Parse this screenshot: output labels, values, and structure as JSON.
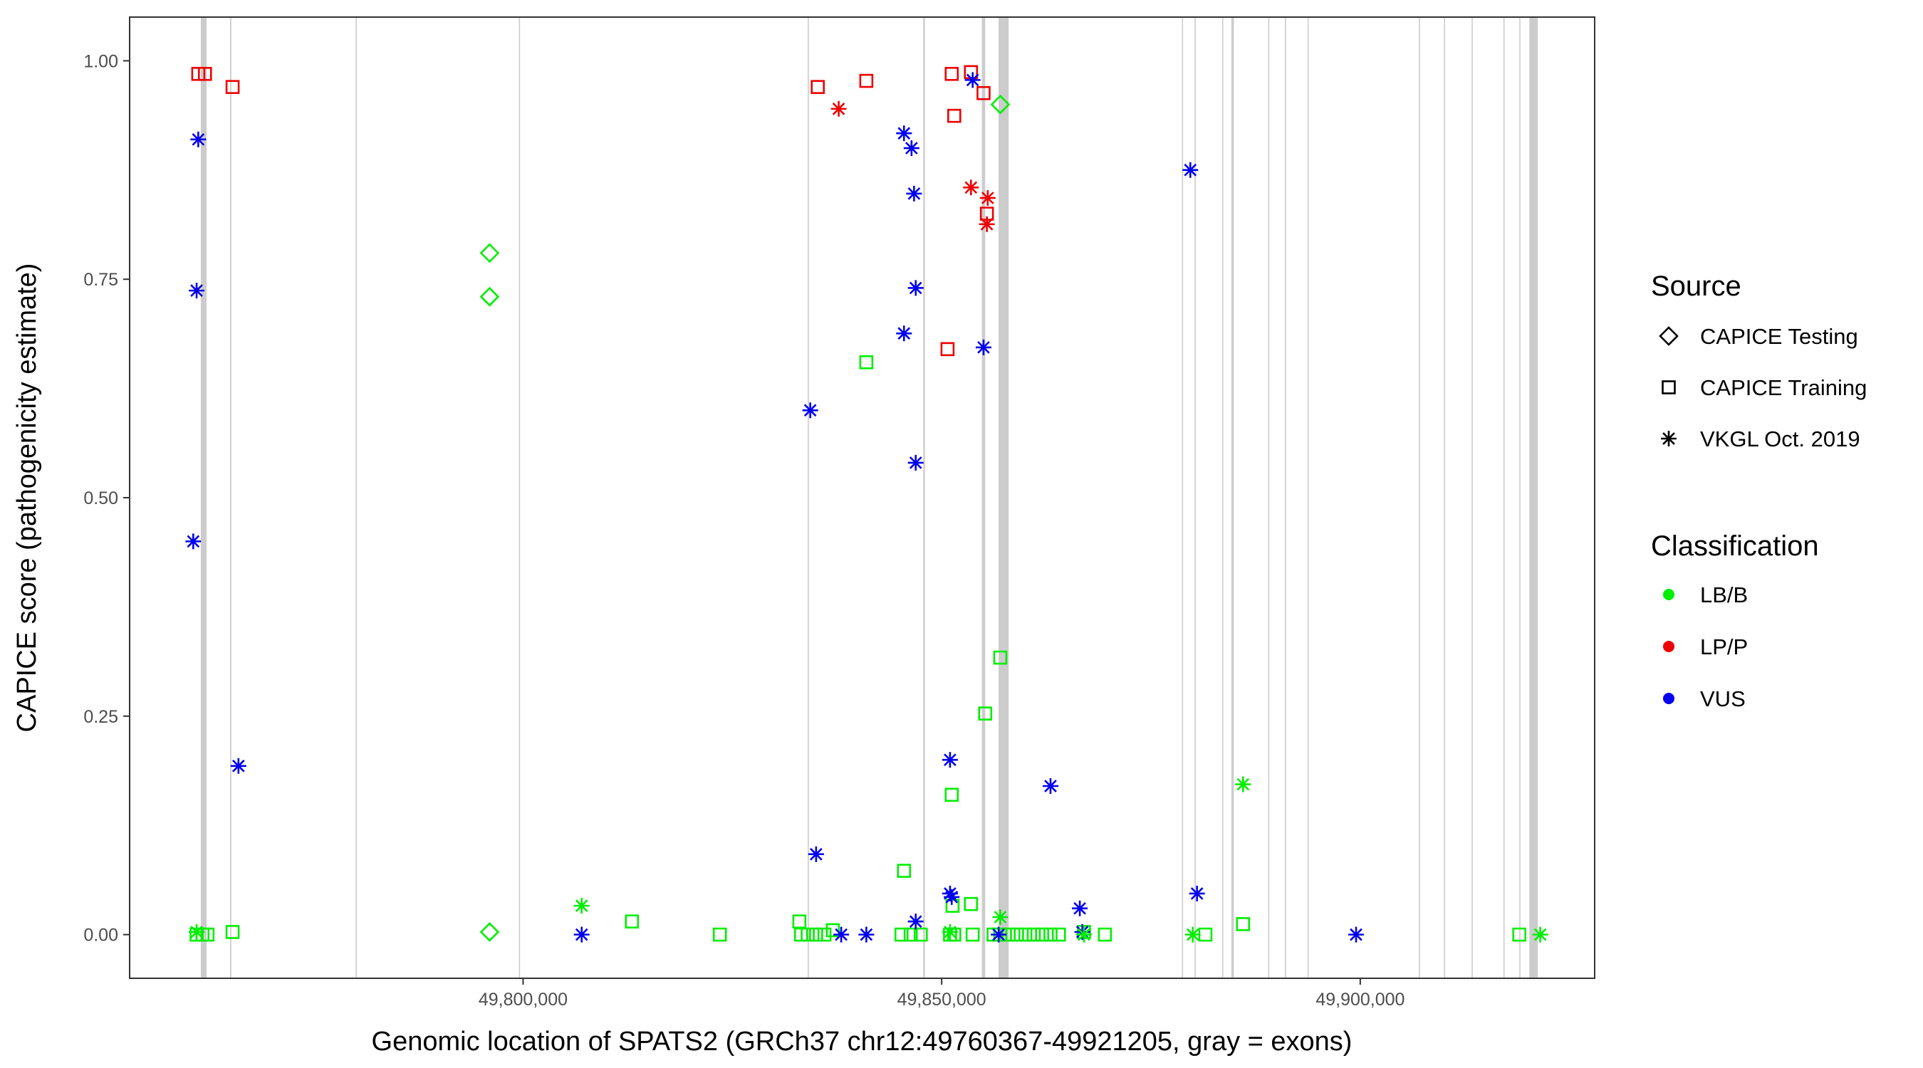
{
  "chart_data": {
    "type": "scatter",
    "title": "",
    "xlabel": "Genomic location of SPATS2 (GRCh37 chr12:49760367-49921205, gray = exons)",
    "ylabel": "CAPICE score (pathogenicity estimate)",
    "xlim": [
      49753000,
      49928000
    ],
    "ylim": [
      -0.05,
      1.05
    ],
    "x_ticks": [
      49800000,
      49850000,
      49900000
    ],
    "x_tick_labels": [
      "49,800,000",
      "49,850,000",
      "49,900,000"
    ],
    "y_ticks": [
      0,
      0.25,
      0.5,
      0.75,
      1
    ],
    "y_tick_labels": [
      "0.00",
      "0.25",
      "0.50",
      "0.75",
      "1.00"
    ],
    "grid": false,
    "legend_position": "right",
    "exon_lines": [
      {
        "start": 49761500,
        "end": 49762200
      },
      {
        "start": 49765000,
        "end": 49765150
      },
      {
        "start": 49780000,
        "end": 49780120
      },
      {
        "start": 49799500,
        "end": 49799620
      },
      {
        "start": 49834000,
        "end": 49834120
      },
      {
        "start": 49847800,
        "end": 49848000
      },
      {
        "start": 49854800,
        "end": 49855200
      },
      {
        "start": 49856800,
        "end": 49858000
      },
      {
        "start": 49878700,
        "end": 49878820
      },
      {
        "start": 49880200,
        "end": 49880320
      },
      {
        "start": 49883500,
        "end": 49883620
      },
      {
        "start": 49884600,
        "end": 49884900
      },
      {
        "start": 49889000,
        "end": 49889120
      },
      {
        "start": 49891000,
        "end": 49891120
      },
      {
        "start": 49893700,
        "end": 49893820
      },
      {
        "start": 49907000,
        "end": 49907120
      },
      {
        "start": 49910000,
        "end": 49910120
      },
      {
        "start": 49913300,
        "end": 49913420
      },
      {
        "start": 49917100,
        "end": 49917220
      },
      {
        "start": 49919000,
        "end": 49919120
      },
      {
        "start": 49920200,
        "end": 49921205
      }
    ],
    "legend": {
      "source_title": "Source",
      "source_items": [
        {
          "shape": "diamond",
          "label": "CAPICE Testing"
        },
        {
          "shape": "square",
          "label": "CAPICE Training"
        },
        {
          "shape": "asterisk",
          "label": "VKGL Oct. 2019"
        }
      ],
      "class_title": "Classification",
      "class_items": [
        {
          "key": "LB/B",
          "label": "LB/B",
          "color": "#00ee00"
        },
        {
          "key": "LP/P",
          "label": "LP/P",
          "color": "#ee0000"
        },
        {
          "key": "VUS",
          "label": "VUS",
          "color": "#0000ee"
        }
      ]
    },
    "colors": {
      "LB/B": "#00ee00",
      "LP/P": "#ee0000",
      "VUS": "#0000ee"
    },
    "series": [
      {
        "source": "CAPICE Testing",
        "class": "LB/B",
        "points": [
          [
            49796000,
            0.78
          ],
          [
            49796000,
            0.73
          ],
          [
            49796000,
            0.003
          ],
          [
            49857000,
            0.95
          ]
        ]
      },
      {
        "source": "CAPICE Training",
        "class": "LP/P",
        "points": [
          [
            49761200,
            0.985
          ],
          [
            49762000,
            0.985
          ],
          [
            49765300,
            0.97
          ],
          [
            49835200,
            0.97
          ],
          [
            49841000,
            0.977
          ],
          [
            49851200,
            0.985
          ],
          [
            49853500,
            0.987
          ],
          [
            49855000,
            0.963
          ],
          [
            49851500,
            0.937
          ],
          [
            49850700,
            0.67
          ],
          [
            49855400,
            0.825
          ]
        ]
      },
      {
        "source": "CAPICE Training",
        "class": "LB/B",
        "points": [
          [
            49761000,
            0.0
          ],
          [
            49761700,
            0.0
          ],
          [
            49762300,
            0.0
          ],
          [
            49765300,
            0.003
          ],
          [
            49813000,
            0.015
          ],
          [
            49823500,
            0.0
          ],
          [
            49833000,
            0.015
          ],
          [
            49833200,
            0.0
          ],
          [
            49834000,
            0.0
          ],
          [
            49835000,
            0.0
          ],
          [
            49836000,
            0.0
          ],
          [
            49837000,
            0.005
          ],
          [
            49841000,
            0.655
          ],
          [
            49845500,
            0.073
          ],
          [
            49845200,
            0.0
          ],
          [
            49846300,
            0.0
          ],
          [
            49847500,
            0.0
          ],
          [
            49851200,
            0.16
          ],
          [
            49851300,
            0.033
          ],
          [
            49851000,
            0.0
          ],
          [
            49851500,
            0.0
          ],
          [
            49853500,
            0.035
          ],
          [
            49853700,
            0.0
          ],
          [
            49855200,
            0.253
          ],
          [
            49857000,
            0.317
          ],
          [
            49856200,
            0.0
          ],
          [
            49857000,
            0.0
          ],
          [
            49858000,
            0.0
          ],
          [
            49859000,
            0.0
          ],
          [
            49860000,
            0.0
          ],
          [
            49861000,
            0.0
          ],
          [
            49862000,
            0.0
          ],
          [
            49863000,
            0.0
          ],
          [
            49864000,
            0.0
          ],
          [
            49867000,
            0.003
          ],
          [
            49869500,
            0.0
          ],
          [
            49881500,
            0.0
          ],
          [
            49886000,
            0.012
          ],
          [
            49919000,
            0.0
          ]
        ]
      },
      {
        "source": "VKGL Oct. 2019",
        "class": "VUS",
        "points": [
          [
            49761200,
            0.91
          ],
          [
            49761000,
            0.737
          ],
          [
            49760600,
            0.45
          ],
          [
            49766000,
            0.193
          ],
          [
            49807000,
            0.0
          ],
          [
            49834300,
            0.6
          ],
          [
            49835000,
            0.092
          ],
          [
            49838000,
            0.0
          ],
          [
            49841000,
            0.0
          ],
          [
            49845500,
            0.917
          ],
          [
            49846400,
            0.9
          ],
          [
            49846700,
            0.848
          ],
          [
            49846900,
            0.74
          ],
          [
            49845500,
            0.688
          ],
          [
            49846900,
            0.54
          ],
          [
            49846900,
            0.015
          ],
          [
            49851000,
            0.2
          ],
          [
            49851000,
            0.047
          ],
          [
            49851200,
            0.043
          ],
          [
            49853700,
            0.978
          ],
          [
            49855000,
            0.672
          ],
          [
            49863000,
            0.17
          ],
          [
            49866500,
            0.03
          ],
          [
            49866800,
            0.003
          ],
          [
            49856800,
            0.0
          ],
          [
            49879700,
            0.875
          ],
          [
            49880500,
            0.047
          ],
          [
            49899500,
            0.0
          ]
        ]
      },
      {
        "source": "VKGL Oct. 2019",
        "class": "LP/P",
        "points": [
          [
            49837700,
            0.945
          ],
          [
            49853500,
            0.855
          ],
          [
            49855500,
            0.843
          ],
          [
            49855400,
            0.813
          ]
        ]
      },
      {
        "source": "VKGL Oct. 2019",
        "class": "LB/B",
        "points": [
          [
            49761000,
            0.003
          ],
          [
            49807000,
            0.033
          ],
          [
            49851000,
            0.003
          ],
          [
            49857000,
            0.02
          ],
          [
            49867000,
            0.0
          ],
          [
            49880000,
            0.0
          ],
          [
            49886000,
            0.172
          ],
          [
            49921500,
            0.0
          ]
        ]
      }
    ]
  }
}
